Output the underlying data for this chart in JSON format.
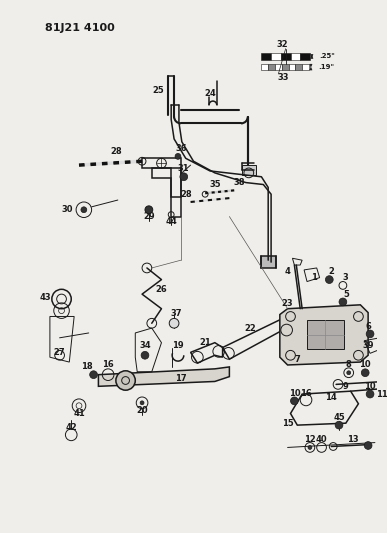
{
  "title": "81J21 4100",
  "bg_color": "#f0eeea",
  "line_color": "#1a1a1a",
  "fig_width": 3.87,
  "fig_height": 5.33,
  "dpi": 100
}
